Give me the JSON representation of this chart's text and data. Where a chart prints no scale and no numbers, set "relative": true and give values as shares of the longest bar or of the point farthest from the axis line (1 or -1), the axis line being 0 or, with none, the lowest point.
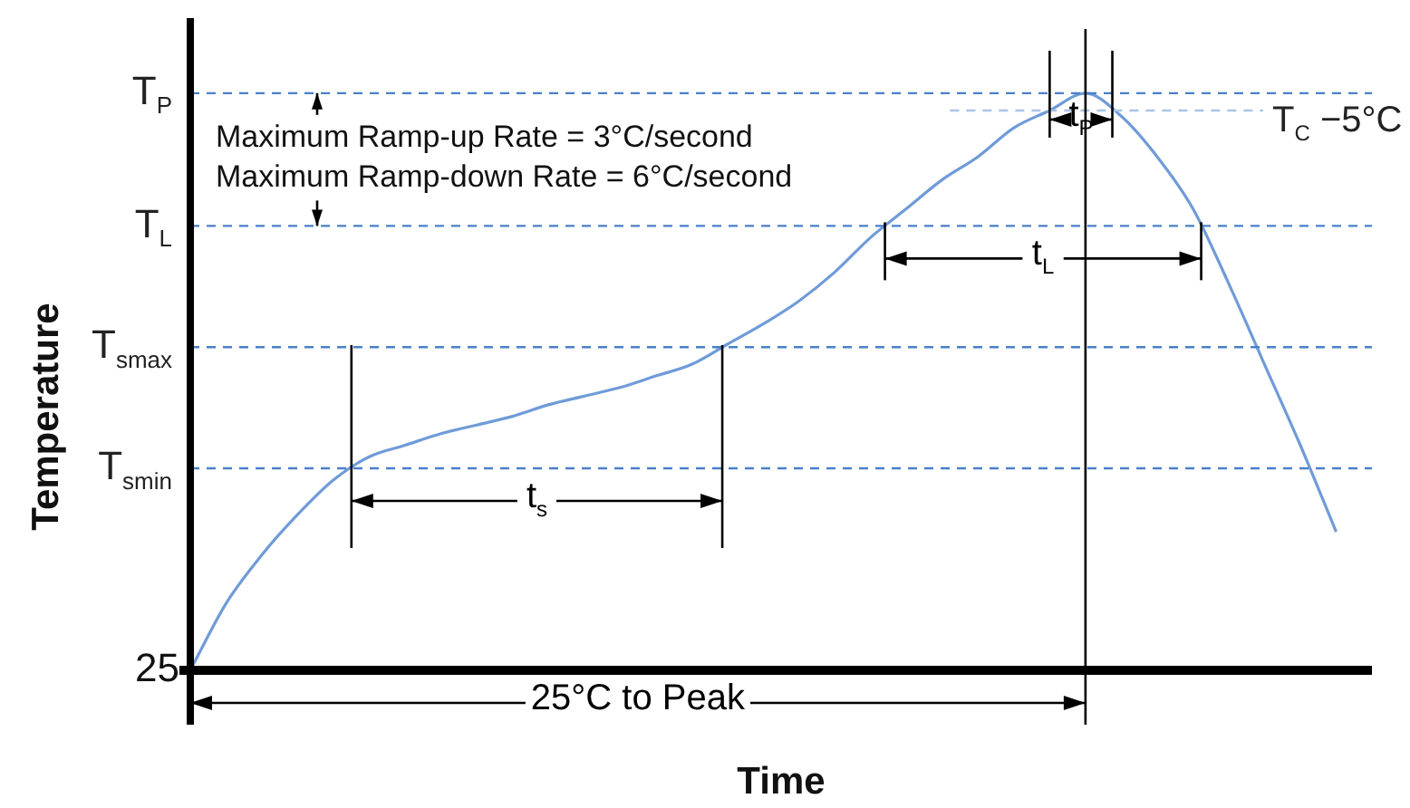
{
  "chart_data": {
    "type": "line",
    "relative": true,
    "xlabel": "Time",
    "ylabel": "Temperature",
    "color": "#6f9bd8",
    "categories": [
      null,
      null,
      null,
      null,
      null,
      null,
      null,
      null,
      null,
      null,
      null,
      null,
      null,
      null,
      null,
      null,
      null,
      null,
      null,
      null,
      null,
      null,
      null,
      null,
      null,
      null,
      null,
      null,
      null,
      null,
      null,
      null,
      null,
      null
    ],
    "values": [
      0,
      0.116,
      0.2,
      0.27,
      0.33,
      0.37,
      0.39,
      0.41,
      0.425,
      0.44,
      0.46,
      0.475,
      0.49,
      0.51,
      0.53,
      0.565,
      0.6,
      0.64,
      0.69,
      0.75,
      0.8,
      0.85,
      0.89,
      0.94,
      0.97,
      1,
      0.96,
      0.89,
      0.8,
      0.67,
      0.53,
      0.39,
      0.24,
      null
    ],
    "ref_lines": [
      {
        "axis": "y",
        "value": 1,
        "label": "T$_{P}$",
        "color": "#4a7fc9",
        "line_style": "dashed"
      },
      {
        "axis": "y",
        "value": 0.77,
        "label": "T$_{L}$",
        "color": "#4a7fc9",
        "line_style": "dashed"
      },
      {
        "axis": "y",
        "value": 0.56,
        "label": "T$_{smax}$",
        "color": "#4a7fc9",
        "line_style": "dashed"
      },
      {
        "axis": "y",
        "value": 0.35,
        "label": "T$_{smin}$",
        "color": "#4a7fc9",
        "line_style": "dashed"
      },
      {
        "axis": "y",
        "value": 0.97,
        "label": "T$_{C}$ −5°C",
        "color": "#aac4e8",
        "line_style": "dashed"
      }
    ],
    "annotations": [
      "Maximum Ramp-up Rate = 3°C/second",
      "Maximum Ramp-down Rate = 6°C/second",
      "t$_{s}$",
      "t$_{L}$",
      "t$_{P}$",
      "25°C to Peak",
      "25"
    ],
    "legend": false,
    "grid": false,
    "marker": "none",
    "line_style": "solid"
  }
}
